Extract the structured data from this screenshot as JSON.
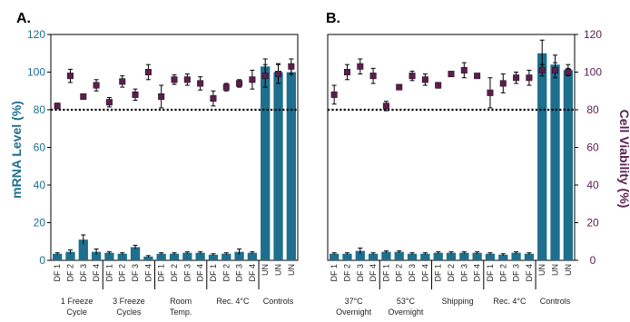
{
  "colors": {
    "bar": "#1e6f8e",
    "marker": "#5a1f4d",
    "threshold": "#000000",
    "left_axis": "#1e6f8e",
    "right_axis": "#5a1f4d"
  },
  "chart_data": [
    {
      "type": "bar",
      "panel_label": "A.",
      "ylabel": "mRNA Level (%)",
      "ylim": [
        0,
        120
      ],
      "yticks": [
        0,
        20,
        40,
        60,
        80,
        100,
        120
      ],
      "threshold": 80,
      "categories": [
        "DF 1",
        "DF 2",
        "DF 3",
        "DF 4",
        "DF 1",
        "DF 2",
        "DF 3",
        "DF 4",
        "DF 1",
        "DF 2",
        "DF 3",
        "DF 4",
        "DF 1",
        "DF 2",
        "DF 3",
        "DF 4",
        "UN",
        "UN",
        "UN"
      ],
      "groups": [
        {
          "lines": [
            "1 Freeze",
            "Cycle"
          ],
          "count": 4
        },
        {
          "lines": [
            "3 Freeze",
            "Cycles"
          ],
          "count": 4
        },
        {
          "lines": [
            "Room",
            "Temp."
          ],
          "count": 4
        },
        {
          "lines": [
            "Rec. 4°C"
          ],
          "count": 4
        },
        {
          "lines": [
            "Controls"
          ],
          "count": 3
        }
      ],
      "series": [
        {
          "name": "mRNA Level (%)",
          "kind": "bar",
          "values": [
            3.5,
            4.5,
            11,
            4.5,
            4,
            3.5,
            7,
            2,
            3.5,
            3.5,
            4,
            4,
            3,
            3.5,
            4.5,
            4,
            103,
            100,
            100
          ],
          "errors": [
            0.5,
            1,
            2.5,
            1.5,
            0.5,
            0.5,
            1,
            0.5,
            0.5,
            0.5,
            0.5,
            0.5,
            0.5,
            0.5,
            1.5,
            0.5,
            4,
            4.5,
            2
          ]
        },
        {
          "name": "Cell Viability (%)",
          "kind": "marker",
          "values": [
            82,
            98,
            87,
            93,
            84,
            95,
            88,
            100,
            87,
            96,
            96,
            94,
            86,
            92,
            94,
            96,
            98,
            99,
            103
          ],
          "errors": [
            1.5,
            3.5,
            1,
            3,
            2.5,
            3,
            3,
            4,
            6,
            2.5,
            3,
            3.5,
            4,
            2,
            2,
            5,
            6,
            5,
            4
          ]
        }
      ]
    },
    {
      "type": "bar",
      "panel_label": "B.",
      "ylabel": "Cell Viability (%)",
      "ylim": [
        0,
        120
      ],
      "yticks": [
        0,
        20,
        40,
        60,
        80,
        100,
        120
      ],
      "threshold": 80,
      "categories": [
        "DF 1",
        "DF 2",
        "DF 3",
        "DF 4",
        "DF 1",
        "DF 2",
        "DF 3",
        "DF 4",
        "DF 1",
        "DF 2",
        "DF 3",
        "DF 4",
        "DF 1",
        "DF 2",
        "DF 3",
        "DF 4",
        "UN",
        "UN",
        "UN"
      ],
      "groups": [
        {
          "lines": [
            "37°C",
            "Overnight"
          ],
          "count": 4
        },
        {
          "lines": [
            "53°C",
            "Overnight"
          ],
          "count": 4
        },
        {
          "lines": [
            "Shipping"
          ],
          "count": 4
        },
        {
          "lines": [
            "Rec. 4°C"
          ],
          "count": 4
        },
        {
          "lines": [
            "Controls"
          ],
          "count": 3
        }
      ],
      "series": [
        {
          "name": "mRNA Level (%)",
          "kind": "bar",
          "values": [
            3.5,
            3.5,
            5,
            3.5,
            4.5,
            4.5,
            3.5,
            3.5,
            4,
            4,
            4,
            4,
            3.5,
            3,
            4,
            3.5,
            110,
            104,
            101
          ],
          "errors": [
            0.5,
            0.5,
            1.5,
            0.5,
            0.5,
            0.5,
            0.5,
            0.5,
            0.5,
            0.5,
            0.5,
            0.5,
            0.5,
            0.5,
            0.5,
            0.5,
            7,
            5,
            3
          ]
        },
        {
          "name": "Cell Viability (%)",
          "kind": "marker",
          "values": [
            88,
            100,
            103,
            98,
            82,
            92,
            98,
            96,
            93,
            99,
            101,
            98,
            89,
            94,
            97,
            97,
            101,
            101,
            100
          ],
          "errors": [
            5,
            4,
            4,
            4,
            2.5,
            1,
            2.5,
            3,
            1.5,
            1,
            4,
            1,
            8,
            5,
            3,
            4,
            3,
            4,
            2
          ]
        }
      ]
    }
  ]
}
